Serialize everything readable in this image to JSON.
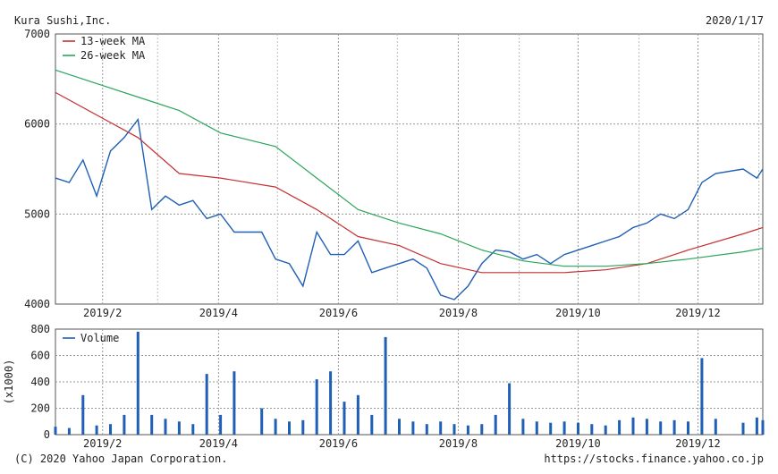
{
  "header": {
    "company": "Kura Sushi,Inc.",
    "date": "2020/1/17"
  },
  "footer": {
    "copyright": "(C) 2020 Yahoo Japan Corporation.",
    "source": "https://stocks.finance.yahoo.co.jp"
  },
  "chart_data": [
    {
      "type": "line",
      "title": "",
      "xlabel": "",
      "ylabel": "",
      "x_ticks": [
        "2019/2",
        "2019/4",
        "2019/6",
        "2019/8",
        "2019/10",
        "2019/12"
      ],
      "y_ticks": [
        4000,
        5000,
        6000,
        7000
      ],
      "ylim": [
        4000,
        7000
      ],
      "grid": true,
      "legend": "top-left",
      "colors": {
        "price": "#1f5fb5",
        "ma13": "#c53030",
        "ma26": "#2aa55a"
      },
      "series": [
        {
          "name": "",
          "key": "price",
          "x": [
            "2019/1/22",
            "2019/1/29",
            "2019/2/5",
            "2019/2/12",
            "2019/2/19",
            "2019/2/26",
            "2019/3/5",
            "2019/3/12",
            "2019/3/19",
            "2019/3/26",
            "2019/4/2",
            "2019/4/9",
            "2019/4/16",
            "2019/4/23",
            "2019/5/7",
            "2019/5/14",
            "2019/5/21",
            "2019/5/28",
            "2019/6/4",
            "2019/6/11",
            "2019/6/18",
            "2019/6/25",
            "2019/7/2",
            "2019/7/9",
            "2019/7/16",
            "2019/7/23",
            "2019/7/30",
            "2019/8/6",
            "2019/8/13",
            "2019/8/20",
            "2019/8/27",
            "2019/9/3",
            "2019/9/10",
            "2019/9/17",
            "2019/9/24",
            "2019/10/1",
            "2019/10/8",
            "2019/10/15",
            "2019/10/22",
            "2019/10/29",
            "2019/11/5",
            "2019/11/12",
            "2019/11/19",
            "2019/11/26",
            "2019/12/3",
            "2019/12/10",
            "2019/12/17",
            "2019/12/24",
            "2020/1/7",
            "2020/1/14",
            "2020/1/17"
          ],
          "values": [
            5400,
            5350,
            5600,
            5200,
            5700,
            5850,
            6050,
            5050,
            5200,
            5100,
            5150,
            4950,
            5000,
            4800,
            4800,
            4500,
            4450,
            4200,
            4800,
            4550,
            4550,
            4700,
            4350,
            4400,
            4450,
            4500,
            4400,
            4100,
            4050,
            4200,
            4450,
            4600,
            4580,
            4500,
            4550,
            4450,
            4550,
            4600,
            4650,
            4700,
            4750,
            4850,
            4900,
            5000,
            4950,
            5050,
            5350,
            5450,
            5500,
            5400,
            5500
          ]
        },
        {
          "name": "13-week MA",
          "key": "ma13",
          "x": [
            "2019/1/22",
            "2019/2/12",
            "2019/3/5",
            "2019/3/26",
            "2019/4/16",
            "2019/5/14",
            "2019/6/4",
            "2019/6/25",
            "2019/7/16",
            "2019/8/6",
            "2019/8/27",
            "2019/9/17",
            "2019/10/8",
            "2019/10/29",
            "2019/11/19",
            "2019/12/10",
            "2020/1/7",
            "2020/1/17"
          ],
          "values": [
            6350,
            6100,
            5850,
            5450,
            5400,
            5300,
            5050,
            4750,
            4650,
            4450,
            4350,
            4350,
            4350,
            4380,
            4450,
            4600,
            4780,
            4850
          ]
        },
        {
          "name": "26-week MA",
          "key": "ma26",
          "x": [
            "2019/1/22",
            "2019/2/12",
            "2019/3/5",
            "2019/3/26",
            "2019/4/16",
            "2019/5/14",
            "2019/6/4",
            "2019/6/25",
            "2019/7/16",
            "2019/8/6",
            "2019/8/27",
            "2019/9/17",
            "2019/10/8",
            "2019/10/29",
            "2019/11/19",
            "2019/12/10",
            "2020/1/7",
            "2020/1/17"
          ],
          "values": [
            6600,
            6450,
            6300,
            6150,
            5900,
            5750,
            5400,
            5050,
            4900,
            4780,
            4600,
            4480,
            4420,
            4420,
            4450,
            4500,
            4580,
            4620
          ]
        }
      ]
    },
    {
      "type": "bar",
      "title": "",
      "xlabel": "",
      "ylabel": "(x1000)",
      "x_ticks": [
        "2019/2",
        "2019/4",
        "2019/6",
        "2019/8",
        "2019/10",
        "2019/12"
      ],
      "y_ticks": [
        0,
        200,
        400,
        600,
        800
      ],
      "ylim": [
        0,
        800
      ],
      "grid": true,
      "legend": "top-left",
      "series": [
        {
          "name": "Volume",
          "x": [
            "2019/1/22",
            "2019/1/29",
            "2019/2/5",
            "2019/2/12",
            "2019/2/19",
            "2019/2/26",
            "2019/3/5",
            "2019/3/12",
            "2019/3/19",
            "2019/3/26",
            "2019/4/2",
            "2019/4/9",
            "2019/4/16",
            "2019/4/23",
            "2019/5/7",
            "2019/5/14",
            "2019/5/21",
            "2019/5/28",
            "2019/6/4",
            "2019/6/11",
            "2019/6/18",
            "2019/6/25",
            "2019/7/2",
            "2019/7/9",
            "2019/7/16",
            "2019/7/23",
            "2019/7/30",
            "2019/8/6",
            "2019/8/13",
            "2019/8/20",
            "2019/8/27",
            "2019/9/3",
            "2019/9/10",
            "2019/9/17",
            "2019/9/24",
            "2019/10/1",
            "2019/10/8",
            "2019/10/15",
            "2019/10/22",
            "2019/10/29",
            "2019/11/5",
            "2019/11/12",
            "2019/11/19",
            "2019/11/26",
            "2019/12/3",
            "2019/12/10",
            "2019/12/17",
            "2019/12/24",
            "2020/1/7",
            "2020/1/14",
            "2020/1/17"
          ],
          "values": [
            60,
            50,
            300,
            70,
            80,
            150,
            780,
            150,
            120,
            100,
            80,
            460,
            150,
            480,
            200,
            120,
            100,
            110,
            420,
            480,
            250,
            300,
            150,
            740,
            120,
            100,
            80,
            100,
            80,
            70,
            80,
            150,
            390,
            120,
            100,
            90,
            100,
            90,
            80,
            70,
            110,
            130,
            120,
            100,
            110,
            100,
            580,
            120,
            90,
            130,
            110
          ]
        }
      ]
    }
  ]
}
